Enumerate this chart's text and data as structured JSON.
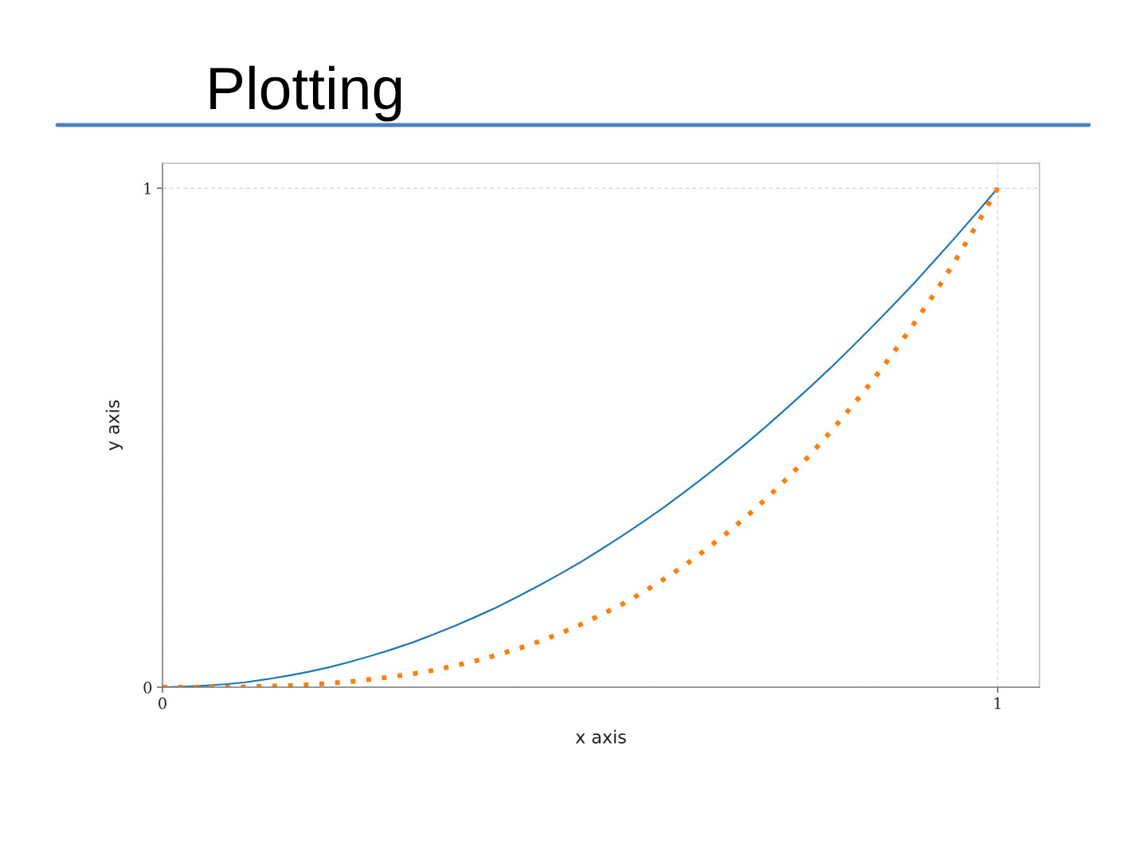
{
  "chart_data": {
    "type": "line",
    "title": "Plotting",
    "xlabel": "x axis",
    "ylabel": "y axis",
    "x": [
      0,
      0.025,
      0.05,
      0.075,
      0.1,
      0.125,
      0.15,
      0.175,
      0.2,
      0.225,
      0.25,
      0.275,
      0.3,
      0.325,
      0.35,
      0.375,
      0.4,
      0.425,
      0.45,
      0.475,
      0.5,
      0.525,
      0.55,
      0.575,
      0.6,
      0.625,
      0.65,
      0.675,
      0.7,
      0.725,
      0.75,
      0.775,
      0.8,
      0.825,
      0.85,
      0.875,
      0.9,
      0.925,
      0.95,
      0.975,
      1
    ],
    "series": [
      {
        "color": "#1f77b4",
        "line_style": "solid",
        "values": [
          0,
          0.001,
          0.003,
          0.006,
          0.01,
          0.016,
          0.023,
          0.031,
          0.04,
          0.051,
          0.063,
          0.076,
          0.09,
          0.106,
          0.123,
          0.141,
          0.16,
          0.181,
          0.203,
          0.226,
          0.25,
          0.276,
          0.303,
          0.331,
          0.36,
          0.391,
          0.423,
          0.456,
          0.49,
          0.526,
          0.563,
          0.601,
          0.64,
          0.681,
          0.723,
          0.766,
          0.81,
          0.856,
          0.903,
          0.951,
          1
        ]
      },
      {
        "color": "#ff7f0e",
        "line_style": "dotted",
        "values": [
          0,
          0,
          0,
          0,
          0.001,
          0.002,
          0.003,
          0.005,
          0.008,
          0.011,
          0.016,
          0.021,
          0.027,
          0.034,
          0.043,
          0.053,
          0.064,
          0.077,
          0.091,
          0.107,
          0.125,
          0.145,
          0.166,
          0.19,
          0.216,
          0.244,
          0.275,
          0.308,
          0.343,
          0.381,
          0.422,
          0.465,
          0.512,
          0.562,
          0.614,
          0.67,
          0.729,
          0.791,
          0.857,
          0.927,
          1
        ]
      }
    ],
    "xlim": [
      0,
      1.05
    ],
    "ylim": [
      0,
      1.05
    ],
    "xticks": [
      0,
      1
    ],
    "yticks": [
      0,
      1
    ],
    "grid": true
  }
}
